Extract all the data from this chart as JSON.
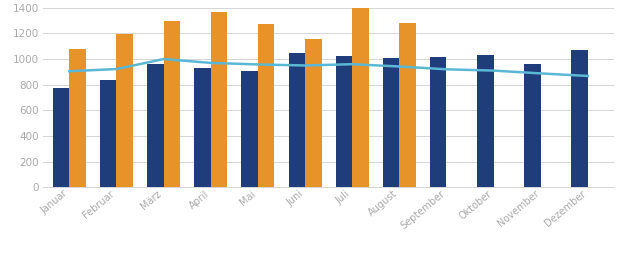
{
  "months": [
    "Januar",
    "Februar",
    "März",
    "April",
    "Mai",
    "Juni",
    "Juli",
    "August",
    "September",
    "Oktober",
    "November",
    "Dezember"
  ],
  "blue_bars": [
    775,
    835,
    960,
    930,
    905,
    1045,
    1020,
    1005,
    1015,
    1035,
    960,
    1070
  ],
  "orange_bars": [
    1075,
    1195,
    1300,
    1365,
    1275,
    1160,
    1400,
    1285,
    null,
    null,
    null,
    null
  ],
  "line_values": [
    905,
    922,
    1000,
    970,
    958,
    950,
    960,
    942,
    920,
    910,
    888,
    868
  ],
  "ylim": [
    0,
    1400
  ],
  "yticks": [
    0,
    200,
    400,
    600,
    800,
    1000,
    1200,
    1400
  ],
  "bar_width": 0.35,
  "blue_color": "#1f3d7a",
  "orange_color": "#e8922a",
  "line_color": "#5bb8d4",
  "background_color": "#ffffff",
  "grid_color": "#d5d5d5",
  "tick_color": "#aaaaaa",
  "label_fontsize": 7.0,
  "ytick_fontsize": 7.5
}
